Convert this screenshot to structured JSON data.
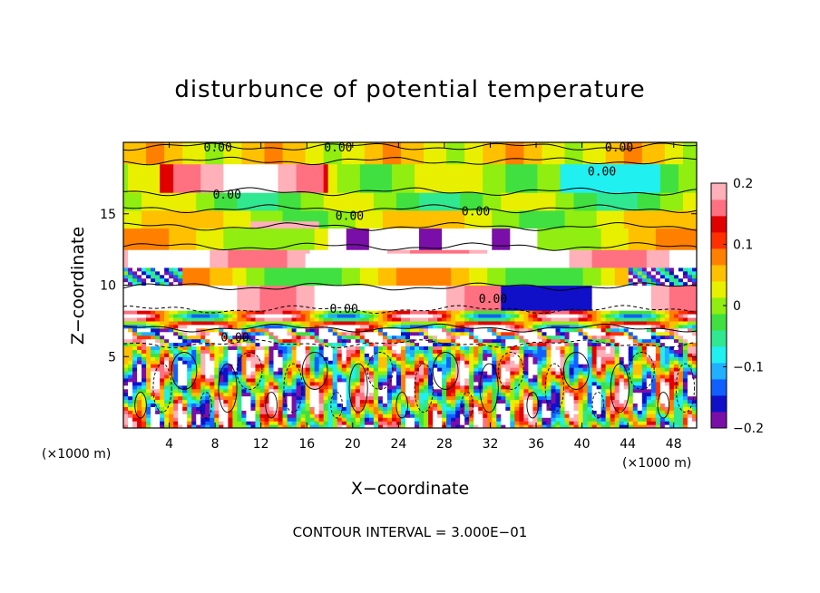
{
  "chart_data": {
    "type": "heatmap",
    "title": "disturbunce of potential temperature",
    "xlabel": "X−coordinate",
    "ylabel": "Z−coordinate",
    "x_unit": "(×1000 m)",
    "x_unit_right": "(×1000 m)",
    "xlim": [
      0,
      50
    ],
    "ylim": [
      0,
      20
    ],
    "xticks": [
      4,
      8,
      12,
      16,
      20,
      24,
      28,
      32,
      36,
      40,
      44,
      48
    ],
    "xtick_labels": [
      "4",
      "8",
      "12",
      "16",
      "20",
      "24",
      "28",
      "32",
      "36",
      "40",
      "44",
      "48"
    ],
    "yticks": [
      5,
      10,
      15
    ],
    "ytick_labels": [
      "5",
      "10",
      "15"
    ],
    "colorbar": {
      "range": [
        -0.2,
        0.2
      ],
      "ticks": [
        -0.2,
        -0.1,
        0,
        0.1,
        0.2
      ],
      "tick_labels": [
        "−0.2",
        "−0.1",
        "0",
        "0.1",
        "0.2"
      ],
      "colors": [
        "#7a0fa8",
        "#1010c8",
        "#1060ff",
        "#20b0ff",
        "#20f0f0",
        "#30e890",
        "#40e040",
        "#90ee10",
        "#e8f000",
        "#ffc000",
        "#ff8000",
        "#ff3000",
        "#e00000",
        "#ff7080",
        "#ffb0b8"
      ]
    },
    "contour_labels": [
      "0.00",
      "0.00",
      "0.00",
      "0.00",
      "0.00",
      "0.00",
      "0.00",
      "0.00",
      "0.00",
      "0.00"
    ],
    "annotation": "CONTOUR INTERVAL = 3.000E−01",
    "grid": false
  }
}
